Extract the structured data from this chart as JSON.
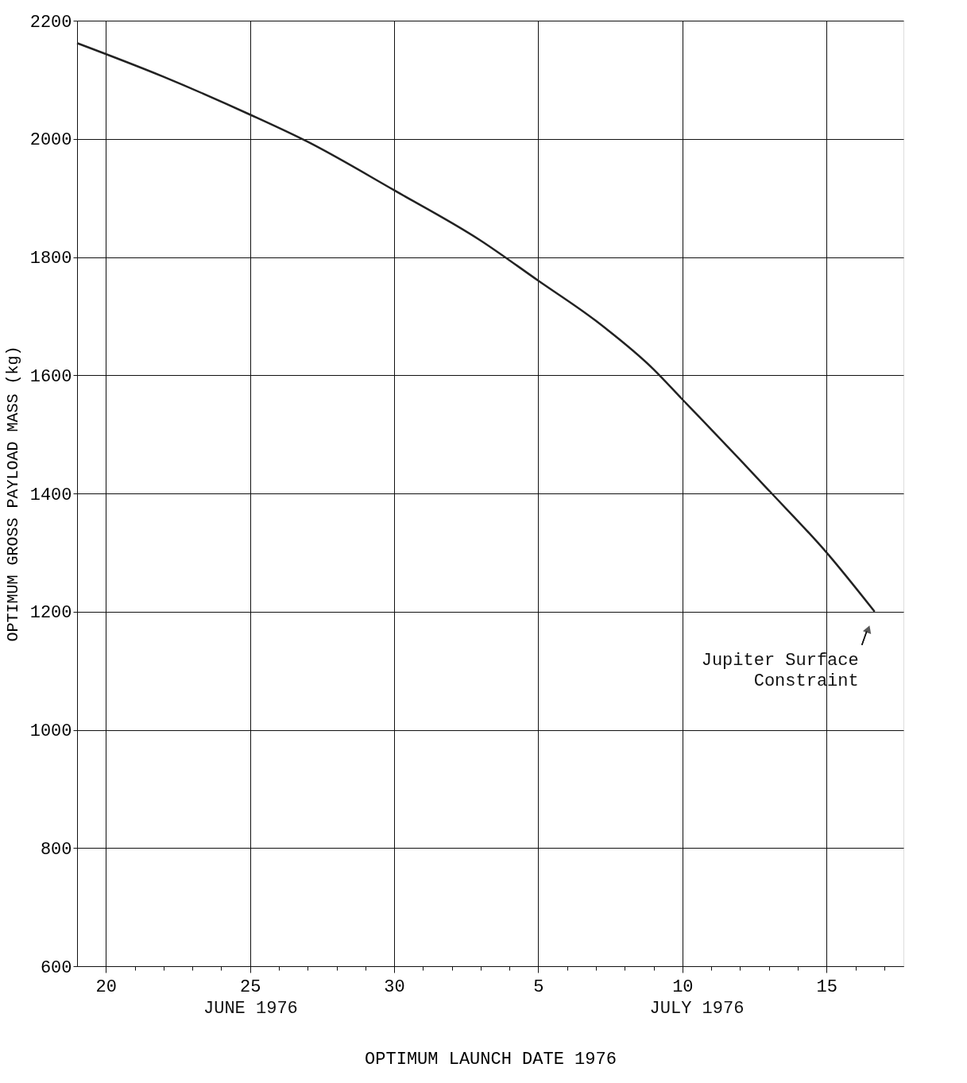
{
  "chart_data": {
    "type": "line",
    "xlabel": "OPTIMUM LAUNCH DATE 1976",
    "ylabel": "OPTIMUM GROSS PAYLOAD MASS (kg)",
    "x": [
      "1976-06-19",
      "1976-06-22",
      "1976-06-25",
      "1976-06-27",
      "1976-06-30",
      "1976-07-03",
      "1976-07-05",
      "1976-07-07",
      "1976-07-09",
      "1976-07-10",
      "1976-07-12",
      "1976-07-13",
      "1976-07-15",
      "1976-07-16T16:00"
    ],
    "series": [
      {
        "color": "#222222",
        "values": [
          2162,
          2105,
          2041,
          1995,
          1913,
          1828,
          1760,
          1692,
          1610,
          1559,
          1457,
          1405,
          1300,
          1200
        ]
      }
    ],
    "xlim": [
      "1976-06-19",
      "1976-07-17T16:00"
    ],
    "xticks": [
      {
        "value": "1976-06-20",
        "label": "20"
      },
      {
        "value": "1976-06-21",
        "label": null
      },
      {
        "value": "1976-06-22",
        "label": null
      },
      {
        "value": "1976-06-23",
        "label": null
      },
      {
        "value": "1976-06-24",
        "label": null
      },
      {
        "value": "1976-06-25",
        "label": "25"
      },
      {
        "value": "1976-06-26",
        "label": null
      },
      {
        "value": "1976-06-27",
        "label": null
      },
      {
        "value": "1976-06-28",
        "label": null
      },
      {
        "value": "1976-06-29",
        "label": null
      },
      {
        "value": "1976-06-30",
        "label": "30"
      },
      {
        "value": "1976-07-01",
        "label": null
      },
      {
        "value": "1976-07-02",
        "label": null
      },
      {
        "value": "1976-07-03",
        "label": null
      },
      {
        "value": "1976-07-04",
        "label": null
      },
      {
        "value": "1976-07-05",
        "label": "5"
      },
      {
        "value": "1976-07-06",
        "label": null
      },
      {
        "value": "1976-07-07",
        "label": null
      },
      {
        "value": "1976-07-08",
        "label": null
      },
      {
        "value": "1976-07-09",
        "label": null
      },
      {
        "value": "1976-07-10",
        "label": "10"
      },
      {
        "value": "1976-07-11",
        "label": null
      },
      {
        "value": "1976-07-12",
        "label": null
      },
      {
        "value": "1976-07-13",
        "label": null
      },
      {
        "value": "1976-07-14",
        "label": null
      },
      {
        "value": "1976-07-15",
        "label": "15"
      },
      {
        "value": "1976-07-16",
        "label": null
      },
      {
        "value": "1976-07-17",
        "label": null
      }
    ],
    "ylim": [
      600,
      2200
    ],
    "yticks": [
      600,
      800,
      1000,
      1200,
      1400,
      1600,
      1800,
      2000,
      2200
    ],
    "grid": true,
    "marker": "none",
    "line_style": "solid",
    "annotations": [
      {
        "text": "Jupiter Surface Constraint",
        "x": "1976-07-16T16:00",
        "y": 1200
      },
      "JUNE 1976",
      "JULY 1976"
    ]
  }
}
